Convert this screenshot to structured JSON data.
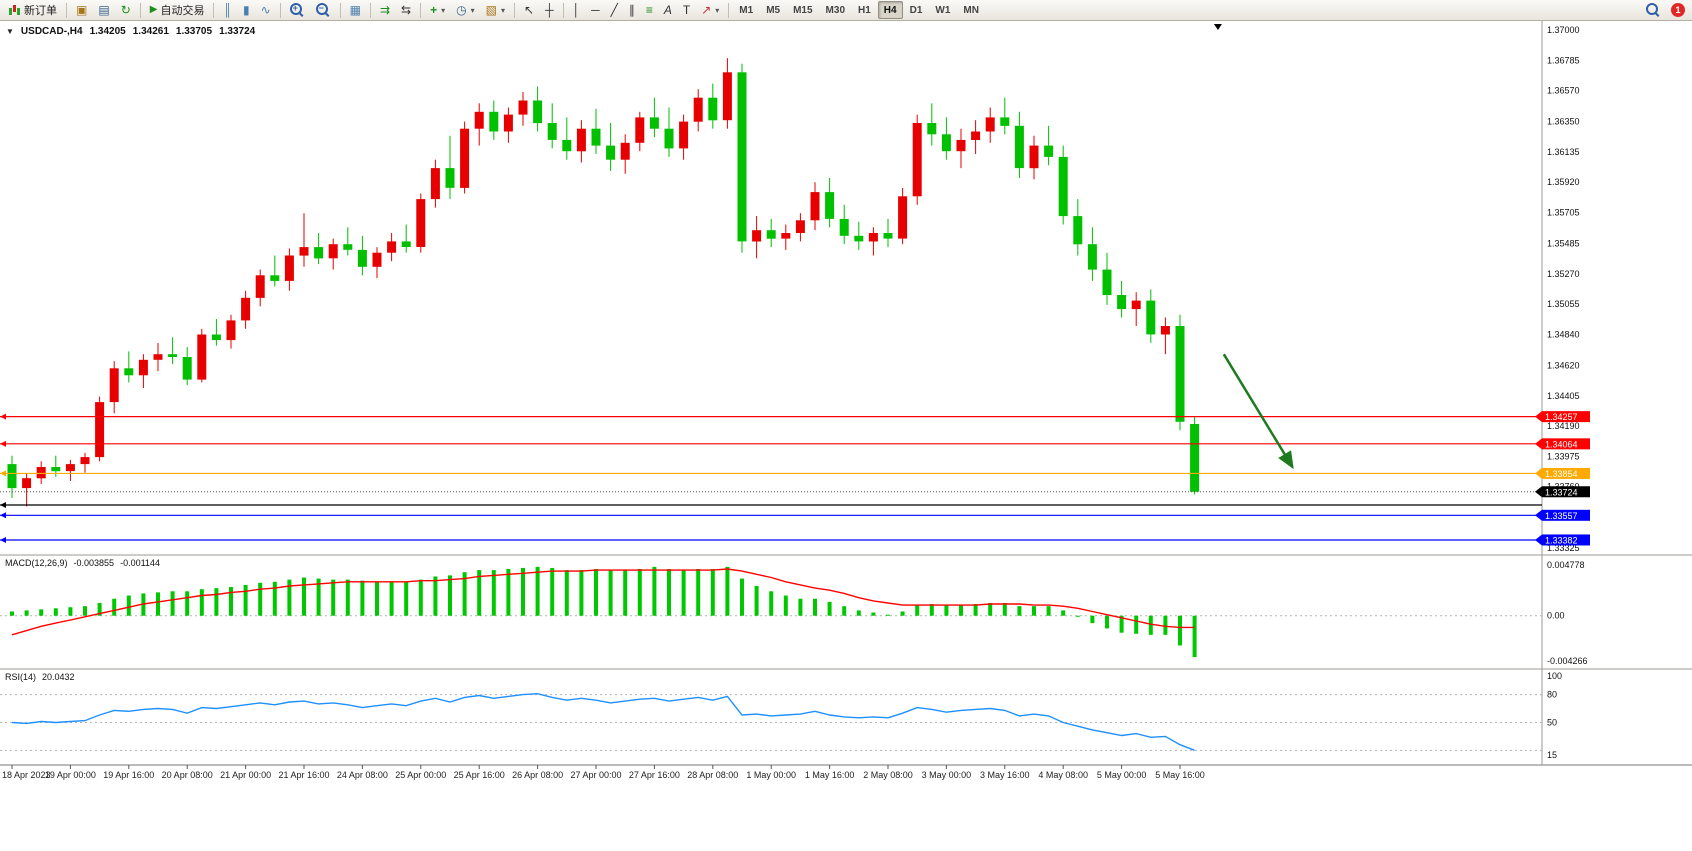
{
  "toolbar": {
    "new_order_label": "新订单",
    "autotrading_label": "自动交易",
    "timeframes": [
      "M1",
      "M5",
      "M15",
      "M30",
      "H1",
      "H4",
      "D1",
      "W1",
      "MN"
    ],
    "active_timeframe": "H4",
    "notification_count": "1"
  },
  "icons": {
    "collapse": "▼",
    "dropdown": "▾",
    "new_chart": "▣",
    "profiles": "▤",
    "refresh": "↻",
    "play": "▶",
    "bar_chart": "║",
    "candles": "▮",
    "line_chart": "∿",
    "tile_windows": "▦",
    "auto_scroll": "⇉",
    "chart_shift": "⇆",
    "indicators_plus": "+",
    "clock": "◷",
    "template": "▧",
    "cursor": "↖",
    "crosshair": "┼",
    "vline": "│",
    "hline": "─",
    "trendline": "╱",
    "channel": "∥",
    "fibonacci": "≡",
    "text": "A",
    "label": "T",
    "arrows": "↗"
  },
  "chart": {
    "symbol_period": "USDCAD-,H4",
    "open": "1.34205",
    "high": "1.34261",
    "low": "1.33705",
    "close": "1.33724"
  },
  "chart_data": {
    "type": "candlestick",
    "symbol": "USDCAD-",
    "period": "H4",
    "up_color": "#e60000",
    "down_color": "#00c000",
    "price_range": {
      "top": 1.37,
      "bottom": 1.33325
    },
    "price_axis_labels": [
      "1.37000",
      "1.36785",
      "1.36570",
      "1.36350",
      "1.36135",
      "1.35920",
      "1.35705",
      "1.35485",
      "1.35270",
      "1.35055",
      "1.34840",
      "1.34620",
      "1.34405",
      "1.34190",
      "1.33975",
      "1.33760",
      "1.33545",
      "1.33325"
    ],
    "candles": [
      [
        1.3392,
        1.3398,
        1.3368,
        1.3375
      ],
      [
        1.3375,
        1.3385,
        1.3362,
        1.3382
      ],
      [
        1.3382,
        1.3394,
        1.3378,
        1.339
      ],
      [
        1.339,
        1.3398,
        1.3383,
        1.3387
      ],
      [
        1.3387,
        1.3395,
        1.338,
        1.3392
      ],
      [
        1.3392,
        1.34,
        1.3386,
        1.3397
      ],
      [
        1.3397,
        1.344,
        1.3394,
        1.3436
      ],
      [
        1.3436,
        1.3465,
        1.3428,
        1.346
      ],
      [
        1.346,
        1.3472,
        1.345,
        1.3455
      ],
      [
        1.3455,
        1.347,
        1.3446,
        1.3466
      ],
      [
        1.3466,
        1.3478,
        1.3458,
        1.347
      ],
      [
        1.347,
        1.3482,
        1.3463,
        1.3468
      ],
      [
        1.3468,
        1.3475,
        1.3448,
        1.3452
      ],
      [
        1.3452,
        1.3488,
        1.345,
        1.3484
      ],
      [
        1.3484,
        1.3495,
        1.3476,
        1.348
      ],
      [
        1.348,
        1.3498,
        1.3474,
        1.3494
      ],
      [
        1.3494,
        1.3515,
        1.3488,
        1.351
      ],
      [
        1.351,
        1.353,
        1.3504,
        1.3526
      ],
      [
        1.3526,
        1.354,
        1.3518,
        1.3522
      ],
      [
        1.3522,
        1.3545,
        1.3515,
        1.354
      ],
      [
        1.354,
        1.357,
        1.3532,
        1.3546
      ],
      [
        1.3546,
        1.3556,
        1.3534,
        1.3538
      ],
      [
        1.3538,
        1.3552,
        1.353,
        1.3548
      ],
      [
        1.3548,
        1.356,
        1.354,
        1.3544
      ],
      [
        1.3544,
        1.3554,
        1.3526,
        1.3532
      ],
      [
        1.3532,
        1.3546,
        1.3524,
        1.3542
      ],
      [
        1.3542,
        1.3556,
        1.3536,
        1.355
      ],
      [
        1.355,
        1.3562,
        1.3542,
        1.3546
      ],
      [
        1.3546,
        1.3584,
        1.3542,
        1.358
      ],
      [
        1.358,
        1.3608,
        1.3574,
        1.3602
      ],
      [
        1.3602,
        1.3625,
        1.358,
        1.3588
      ],
      [
        1.3588,
        1.3635,
        1.3584,
        1.363
      ],
      [
        1.363,
        1.3648,
        1.3618,
        1.3642
      ],
      [
        1.3642,
        1.365,
        1.3622,
        1.3628
      ],
      [
        1.3628,
        1.3645,
        1.362,
        1.364
      ],
      [
        1.364,
        1.3656,
        1.3632,
        1.365
      ],
      [
        1.365,
        1.366,
        1.3628,
        1.3634
      ],
      [
        1.3634,
        1.3648,
        1.3616,
        1.3622
      ],
      [
        1.3622,
        1.3638,
        1.3608,
        1.3614
      ],
      [
        1.3614,
        1.3636,
        1.3606,
        1.363
      ],
      [
        1.363,
        1.3644,
        1.3612,
        1.3618
      ],
      [
        1.3618,
        1.3634,
        1.36,
        1.3608
      ],
      [
        1.3608,
        1.3626,
        1.3598,
        1.362
      ],
      [
        1.362,
        1.3642,
        1.3614,
        1.3638
      ],
      [
        1.3638,
        1.3652,
        1.3624,
        1.363
      ],
      [
        1.363,
        1.3645,
        1.361,
        1.3616
      ],
      [
        1.3616,
        1.364,
        1.3608,
        1.3635
      ],
      [
        1.3635,
        1.3658,
        1.3628,
        1.3652
      ],
      [
        1.3652,
        1.3662,
        1.363,
        1.3636
      ],
      [
        1.3636,
        1.368,
        1.363,
        1.367
      ],
      [
        1.367,
        1.3676,
        1.3542,
        1.355
      ],
      [
        1.355,
        1.3568,
        1.3538,
        1.3558
      ],
      [
        1.3558,
        1.3566,
        1.3546,
        1.3552
      ],
      [
        1.3552,
        1.3562,
        1.3544,
        1.3556
      ],
      [
        1.3556,
        1.357,
        1.355,
        1.3565
      ],
      [
        1.3565,
        1.3592,
        1.3558,
        1.3585
      ],
      [
        1.3585,
        1.3595,
        1.356,
        1.3566
      ],
      [
        1.3566,
        1.3576,
        1.3548,
        1.3554
      ],
      [
        1.3554,
        1.3564,
        1.3544,
        1.355
      ],
      [
        1.355,
        1.356,
        1.354,
        1.3556
      ],
      [
        1.3556,
        1.3566,
        1.3546,
        1.3552
      ],
      [
        1.3552,
        1.3588,
        1.3548,
        1.3582
      ],
      [
        1.3582,
        1.364,
        1.3576,
        1.3634
      ],
      [
        1.3634,
        1.3648,
        1.3618,
        1.3626
      ],
      [
        1.3626,
        1.3638,
        1.3608,
        1.3614
      ],
      [
        1.3614,
        1.363,
        1.3602,
        1.3622
      ],
      [
        1.3622,
        1.3636,
        1.3612,
        1.3628
      ],
      [
        1.3628,
        1.3645,
        1.362,
        1.3638
      ],
      [
        1.3638,
        1.3652,
        1.3626,
        1.3632
      ],
      [
        1.3632,
        1.3642,
        1.3595,
        1.3602
      ],
      [
        1.3602,
        1.3625,
        1.3594,
        1.3618
      ],
      [
        1.3618,
        1.3632,
        1.3604,
        1.361
      ],
      [
        1.361,
        1.3618,
        1.3562,
        1.3568
      ],
      [
        1.3568,
        1.358,
        1.354,
        1.3548
      ],
      [
        1.3548,
        1.356,
        1.3522,
        1.353
      ],
      [
        1.353,
        1.3542,
        1.3505,
        1.3512
      ],
      [
        1.3512,
        1.3522,
        1.3496,
        1.3502
      ],
      [
        1.3502,
        1.3514,
        1.349,
        1.3508
      ],
      [
        1.3508,
        1.3516,
        1.3478,
        1.3484
      ],
      [
        1.3484,
        1.3496,
        1.347,
        1.349
      ],
      [
        1.349,
        1.3498,
        1.3416,
        1.3422
      ],
      [
        1.34205,
        1.34261,
        1.33705,
        1.33724
      ]
    ],
    "time_labels": [
      {
        "i": 0,
        "t": "18 Apr 2023"
      },
      {
        "i": 4,
        "t": "19 Apr 00:00"
      },
      {
        "i": 8,
        "t": "19 Apr 16:00"
      },
      {
        "i": 12,
        "t": "20 Apr 08:00"
      },
      {
        "i": 16,
        "t": "21 Apr 00:00"
      },
      {
        "i": 20,
        "t": "21 Apr 16:00"
      },
      {
        "i": 24,
        "t": "24 Apr 08:00"
      },
      {
        "i": 28,
        "t": "25 Apr 00:00"
      },
      {
        "i": 32,
        "t": "25 Apr 16:00"
      },
      {
        "i": 36,
        "t": "26 Apr 08:00"
      },
      {
        "i": 40,
        "t": "27 Apr 00:00"
      },
      {
        "i": 44,
        "t": "27 Apr 16:00"
      },
      {
        "i": 48,
        "t": "28 Apr 08:00"
      },
      {
        "i": 52,
        "t": "1 May 00:00"
      },
      {
        "i": 56,
        "t": "1 May 16:00"
      },
      {
        "i": 60,
        "t": "2 May 08:00"
      },
      {
        "i": 64,
        "t": "3 May 00:00"
      },
      {
        "i": 68,
        "t": "3 May 16:00"
      },
      {
        "i": 72,
        "t": "4 May 08:00"
      },
      {
        "i": 76,
        "t": "5 May 00:00"
      },
      {
        "i": 80,
        "t": "5 May 16:00"
      }
    ],
    "hlines": [
      {
        "price": 1.34257,
        "color": "#ff0000",
        "label": "1.34257"
      },
      {
        "price": 1.34064,
        "color": "#ff0000",
        "label": "1.34064"
      },
      {
        "price": 1.33854,
        "color": "#ffaa00",
        "label": "1.33854"
      },
      {
        "price": 1.3363,
        "color": "#000000",
        "label": null
      },
      {
        "price": 1.33557,
        "color": "#0000ff",
        "label": "1.33557"
      },
      {
        "price": 1.33382,
        "color": "#0000ff",
        "label": "1.33382"
      }
    ],
    "bid_line": {
      "price": 1.33724,
      "label": "1.33724",
      "box_color": "#000000"
    },
    "shift_marker_index": 82.6,
    "arrow_object": {
      "from_index": 83,
      "from_price": 1.347,
      "to_index": 87.7,
      "to_price": 1.339,
      "color": "#1e7a1e"
    },
    "macd": {
      "name": "MACD(12,26,9)",
      "value_main": "-0.003855",
      "value_signal": "-0.001144",
      "max": 0.004778,
      "min": -0.004266,
      "axis_labels": [
        "0.004778",
        "0.00",
        "-0.004266"
      ],
      "hist_color": "#00c800",
      "signal_color": "#ff0000",
      "hist": [
        0.0004,
        0.0005,
        0.0006,
        0.0007,
        0.0008,
        0.0009,
        0.0012,
        0.0016,
        0.0019,
        0.0021,
        0.0022,
        0.0023,
        0.0023,
        0.0025,
        0.0026,
        0.0027,
        0.0029,
        0.0031,
        0.0032,
        0.0034,
        0.0036,
        0.0035,
        0.0034,
        0.0034,
        0.0033,
        0.0032,
        0.0032,
        0.0032,
        0.0034,
        0.0037,
        0.0038,
        0.0041,
        0.0043,
        0.0043,
        0.0044,
        0.0045,
        0.0046,
        0.0045,
        0.0043,
        0.0043,
        0.0044,
        0.0043,
        0.0043,
        0.0044,
        0.0046,
        0.0044,
        0.0043,
        0.0044,
        0.0044,
        0.0046,
        0.0035,
        0.0028,
        0.0023,
        0.0019,
        0.0016,
        0.0016,
        0.0013,
        0.0009,
        0.0005,
        0.0003,
        0.0001,
        0.0004,
        0.001,
        0.0011,
        0.001,
        0.001,
        0.0011,
        0.0012,
        0.0012,
        0.0009,
        0.0009,
        0.0009,
        0.0005,
        -0.0001,
        -0.0007,
        -0.0012,
        -0.0016,
        -0.0017,
        -0.0018,
        -0.0018,
        -0.0028,
        -0.0039
      ],
      "signal": [
        -0.0018,
        -0.0014,
        -0.001,
        -0.0007,
        -0.0004,
        -0.0001,
        0.0002,
        0.0005,
        0.0008,
        0.0011,
        0.0013,
        0.0015,
        0.0017,
        0.0019,
        0.002,
        0.0022,
        0.0023,
        0.0025,
        0.0026,
        0.0028,
        0.0029,
        0.003,
        0.0031,
        0.0032,
        0.0032,
        0.0032,
        0.0032,
        0.0032,
        0.0033,
        0.0033,
        0.0034,
        0.0035,
        0.0037,
        0.0038,
        0.0039,
        0.004,
        0.0041,
        0.0042,
        0.0042,
        0.0042,
        0.0043,
        0.0043,
        0.0043,
        0.0043,
        0.0043,
        0.0043,
        0.0043,
        0.0043,
        0.0043,
        0.0044,
        0.0042,
        0.0039,
        0.0036,
        0.0032,
        0.0029,
        0.0026,
        0.0024,
        0.0021,
        0.0017,
        0.0014,
        0.0012,
        0.001,
        0.001,
        0.001,
        0.001,
        0.001,
        0.001,
        0.0011,
        0.0011,
        0.0011,
        0.001,
        0.001,
        0.0009,
        0.0007,
        0.0004,
        0.0001,
        -0.0002,
        -0.0005,
        -0.0008,
        -0.001,
        -0.0011,
        -0.0011
      ]
    },
    "rsi": {
      "name": "RSI(14)",
      "value": "20.0432",
      "color": "#1e90ff",
      "levels": [
        80,
        50,
        20
      ],
      "axis_labels": [
        {
          "v": 100,
          "t": "100"
        },
        {
          "v": 80,
          "t": "80"
        },
        {
          "v": 50,
          "t": "50"
        },
        {
          "v": 15,
          "t": "15"
        }
      ],
      "values": [
        50,
        49,
        51,
        50,
        51,
        52,
        58,
        63,
        62,
        64,
        65,
        64,
        60,
        66,
        65,
        67,
        69,
        71,
        69,
        72,
        73,
        70,
        71,
        69,
        66,
        68,
        70,
        68,
        73,
        76,
        72,
        77,
        79,
        76,
        78,
        80,
        81,
        77,
        74,
        76,
        74,
        71,
        73,
        75,
        76,
        73,
        75,
        77,
        74,
        78,
        58,
        59,
        57,
        58,
        59,
        62,
        58,
        56,
        55,
        56,
        55,
        60,
        66,
        64,
        61,
        63,
        64,
        65,
        63,
        57,
        59,
        57,
        50,
        46,
        42,
        39,
        36,
        38,
        34,
        35,
        26,
        20.04
      ]
    }
  }
}
